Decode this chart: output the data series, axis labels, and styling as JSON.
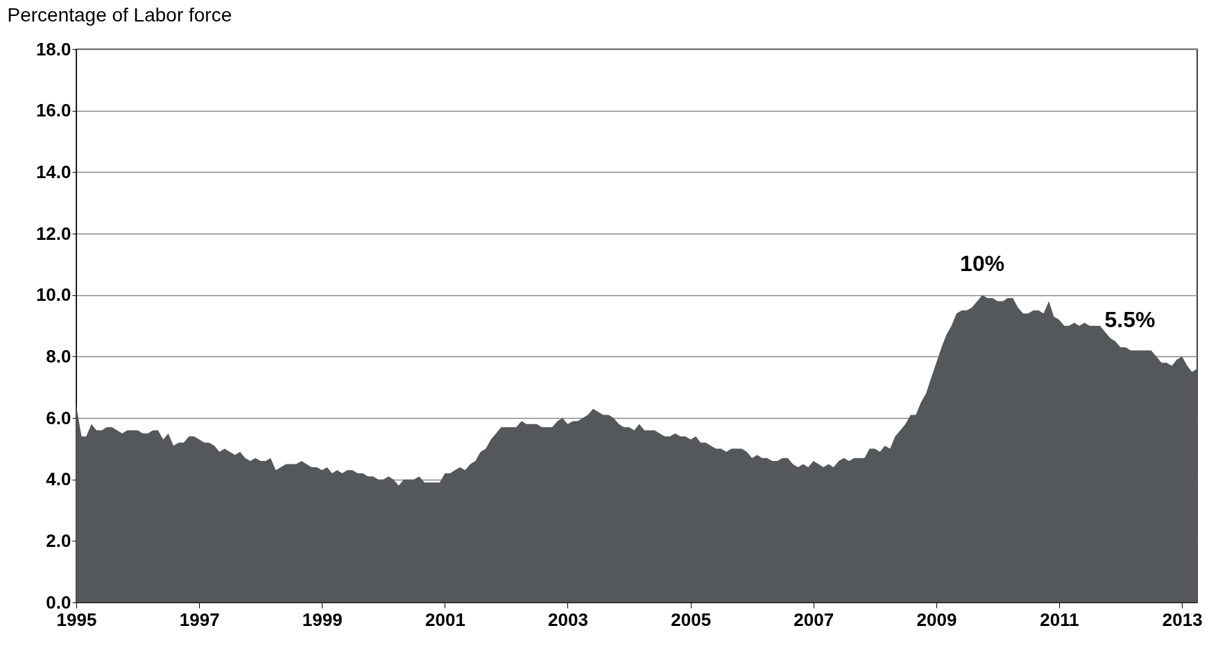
{
  "chart_data": {
    "type": "area",
    "ylabel": "Percentage of Labor force",
    "x": [
      "1995-01",
      "1995-02",
      "1995-03",
      "1995-04",
      "1995-05",
      "1995-06",
      "1995-07",
      "1995-08",
      "1995-09",
      "1995-10",
      "1995-11",
      "1995-12",
      "1996-01",
      "1996-02",
      "1996-03",
      "1996-04",
      "1996-05",
      "1996-06",
      "1996-07",
      "1996-08",
      "1996-09",
      "1996-10",
      "1996-11",
      "1996-12",
      "1997-01",
      "1997-02",
      "1997-03",
      "1997-04",
      "1997-05",
      "1997-06",
      "1997-07",
      "1997-08",
      "1997-09",
      "1997-10",
      "1997-11",
      "1997-12",
      "1998-01",
      "1998-02",
      "1998-03",
      "1998-04",
      "1998-05",
      "1998-06",
      "1998-07",
      "1998-08",
      "1998-09",
      "1998-10",
      "1998-11",
      "1998-12",
      "1999-01",
      "1999-02",
      "1999-03",
      "1999-04",
      "1999-05",
      "1999-06",
      "1999-07",
      "1999-08",
      "1999-09",
      "1999-10",
      "1999-11",
      "1999-12",
      "2000-01",
      "2000-02",
      "2000-03",
      "2000-04",
      "2000-05",
      "2000-06",
      "2000-07",
      "2000-08",
      "2000-09",
      "2000-10",
      "2000-11",
      "2000-12",
      "2001-01",
      "2001-02",
      "2001-03",
      "2001-04",
      "2001-05",
      "2001-06",
      "2001-07",
      "2001-08",
      "2001-09",
      "2001-10",
      "2001-11",
      "2001-12",
      "2002-01",
      "2002-02",
      "2002-03",
      "2002-04",
      "2002-05",
      "2002-06",
      "2002-07",
      "2002-08",
      "2002-09",
      "2002-10",
      "2002-11",
      "2002-12",
      "2003-01",
      "2003-02",
      "2003-03",
      "2003-04",
      "2003-05",
      "2003-06",
      "2003-07",
      "2003-08",
      "2003-09",
      "2003-10",
      "2003-11",
      "2003-12",
      "2004-01",
      "2004-02",
      "2004-03",
      "2004-04",
      "2004-05",
      "2004-06",
      "2004-07",
      "2004-08",
      "2004-09",
      "2004-10",
      "2004-11",
      "2004-12",
      "2005-01",
      "2005-02",
      "2005-03",
      "2005-04",
      "2005-05",
      "2005-06",
      "2005-07",
      "2005-08",
      "2005-09",
      "2005-10",
      "2005-11",
      "2005-12",
      "2006-01",
      "2006-02",
      "2006-03",
      "2006-04",
      "2006-05",
      "2006-06",
      "2006-07",
      "2006-08",
      "2006-09",
      "2006-10",
      "2006-11",
      "2006-12",
      "2007-01",
      "2007-02",
      "2007-03",
      "2007-04",
      "2007-05",
      "2007-06",
      "2007-07",
      "2007-08",
      "2007-09",
      "2007-10",
      "2007-11",
      "2007-12",
      "2008-01",
      "2008-02",
      "2008-03",
      "2008-04",
      "2008-05",
      "2008-06",
      "2008-07",
      "2008-08",
      "2008-09",
      "2008-10",
      "2008-11",
      "2008-12",
      "2009-01",
      "2009-02",
      "2009-03",
      "2009-04",
      "2009-05",
      "2009-06",
      "2009-07",
      "2009-08",
      "2009-09",
      "2009-10",
      "2009-11",
      "2009-12",
      "2010-01",
      "2010-02",
      "2010-03",
      "2010-04",
      "2010-05",
      "2010-06",
      "2010-07",
      "2010-08",
      "2010-09",
      "2010-10",
      "2010-11",
      "2010-12",
      "2011-01",
      "2011-02",
      "2011-03",
      "2011-04",
      "2011-05",
      "2011-06",
      "2011-07",
      "2011-08",
      "2011-09",
      "2011-10",
      "2011-11",
      "2011-12",
      "2012-01",
      "2012-02",
      "2012-03",
      "2012-04",
      "2012-05",
      "2012-06",
      "2012-07",
      "2012-08",
      "2012-09",
      "2012-10",
      "2012-11",
      "2012-12",
      "2013-01",
      "2013-02",
      "2013-03",
      "2013-04"
    ],
    "series": [
      {
        "color": "#54585a",
        "values": [
          6.4,
          5.4,
          5.4,
          5.8,
          5.6,
          5.6,
          5.7,
          5.7,
          5.6,
          5.5,
          5.6,
          5.6,
          5.6,
          5.5,
          5.5,
          5.6,
          5.6,
          5.3,
          5.5,
          5.1,
          5.2,
          5.2,
          5.4,
          5.4,
          5.3,
          5.2,
          5.2,
          5.1,
          4.9,
          5.0,
          4.9,
          4.8,
          4.9,
          4.7,
          4.6,
          4.7,
          4.6,
          4.6,
          4.7,
          4.3,
          4.4,
          4.5,
          4.5,
          4.5,
          4.6,
          4.5,
          4.4,
          4.4,
          4.3,
          4.4,
          4.2,
          4.3,
          4.2,
          4.3,
          4.3,
          4.2,
          4.2,
          4.1,
          4.1,
          4.0,
          4.0,
          4.1,
          4.0,
          3.8,
          4.0,
          4.0,
          4.0,
          4.1,
          3.9,
          3.9,
          3.9,
          3.9,
          4.2,
          4.2,
          4.3,
          4.4,
          4.3,
          4.5,
          4.6,
          4.9,
          5.0,
          5.3,
          5.5,
          5.7,
          5.7,
          5.7,
          5.7,
          5.9,
          5.8,
          5.8,
          5.8,
          5.7,
          5.7,
          5.7,
          5.9,
          6.0,
          5.8,
          5.9,
          5.9,
          6.0,
          6.1,
          6.3,
          6.2,
          6.1,
          6.1,
          6.0,
          5.8,
          5.7,
          5.7,
          5.6,
          5.8,
          5.6,
          5.6,
          5.6,
          5.5,
          5.4,
          5.4,
          5.5,
          5.4,
          5.4,
          5.3,
          5.4,
          5.2,
          5.2,
          5.1,
          5.0,
          5.0,
          4.9,
          5.0,
          5.0,
          5.0,
          4.9,
          4.7,
          4.8,
          4.7,
          4.7,
          4.6,
          4.6,
          4.7,
          4.7,
          4.5,
          4.4,
          4.5,
          4.4,
          4.6,
          4.5,
          4.4,
          4.5,
          4.4,
          4.6,
          4.7,
          4.6,
          4.7,
          4.7,
          4.7,
          5.0,
          5.0,
          4.9,
          5.1,
          5.0,
          5.4,
          5.6,
          5.8,
          6.1,
          6.1,
          6.5,
          6.8,
          7.3,
          7.8,
          8.3,
          8.7,
          9.0,
          9.4,
          9.5,
          9.5,
          9.6,
          9.8,
          10.0,
          9.9,
          9.9,
          9.8,
          9.8,
          9.9,
          9.9,
          9.6,
          9.4,
          9.4,
          9.5,
          9.5,
          9.4,
          9.8,
          9.3,
          9.2,
          9.0,
          9.0,
          9.1,
          9.0,
          9.1,
          9.0,
          9.0,
          9.0,
          8.8,
          8.6,
          8.5,
          8.3,
          8.3,
          8.2,
          8.2,
          8.2,
          8.2,
          8.2,
          8.0,
          7.8,
          7.8,
          7.7,
          7.9,
          8.0,
          7.7,
          7.5,
          7.6
        ]
      }
    ],
    "xlim": [
      "1995-01",
      "2013-04"
    ],
    "xticks": [
      "1995",
      "1997",
      "1999",
      "2001",
      "2003",
      "2005",
      "2007",
      "2009",
      "2011",
      "2013"
    ],
    "ylim": [
      0,
      18
    ],
    "yticks": [
      {
        "value": 0,
        "label": "0.0"
      },
      {
        "value": 2,
        "label": "2.0"
      },
      {
        "value": 4,
        "label": "4.0"
      },
      {
        "value": 6,
        "label": "6.0"
      },
      {
        "value": 8,
        "label": "8.0"
      },
      {
        "value": 10,
        "label": "10.0"
      },
      {
        "value": 12,
        "label": "12.0"
      },
      {
        "value": 14,
        "label": "14.0"
      },
      {
        "value": 16,
        "label": "16.0"
      },
      {
        "value": 18,
        "label": "18.0"
      }
    ],
    "grid": "y",
    "annotations": [
      {
        "text": "10%",
        "x": "2009-10",
        "y": 10.0
      },
      "5.5%"
    ]
  }
}
